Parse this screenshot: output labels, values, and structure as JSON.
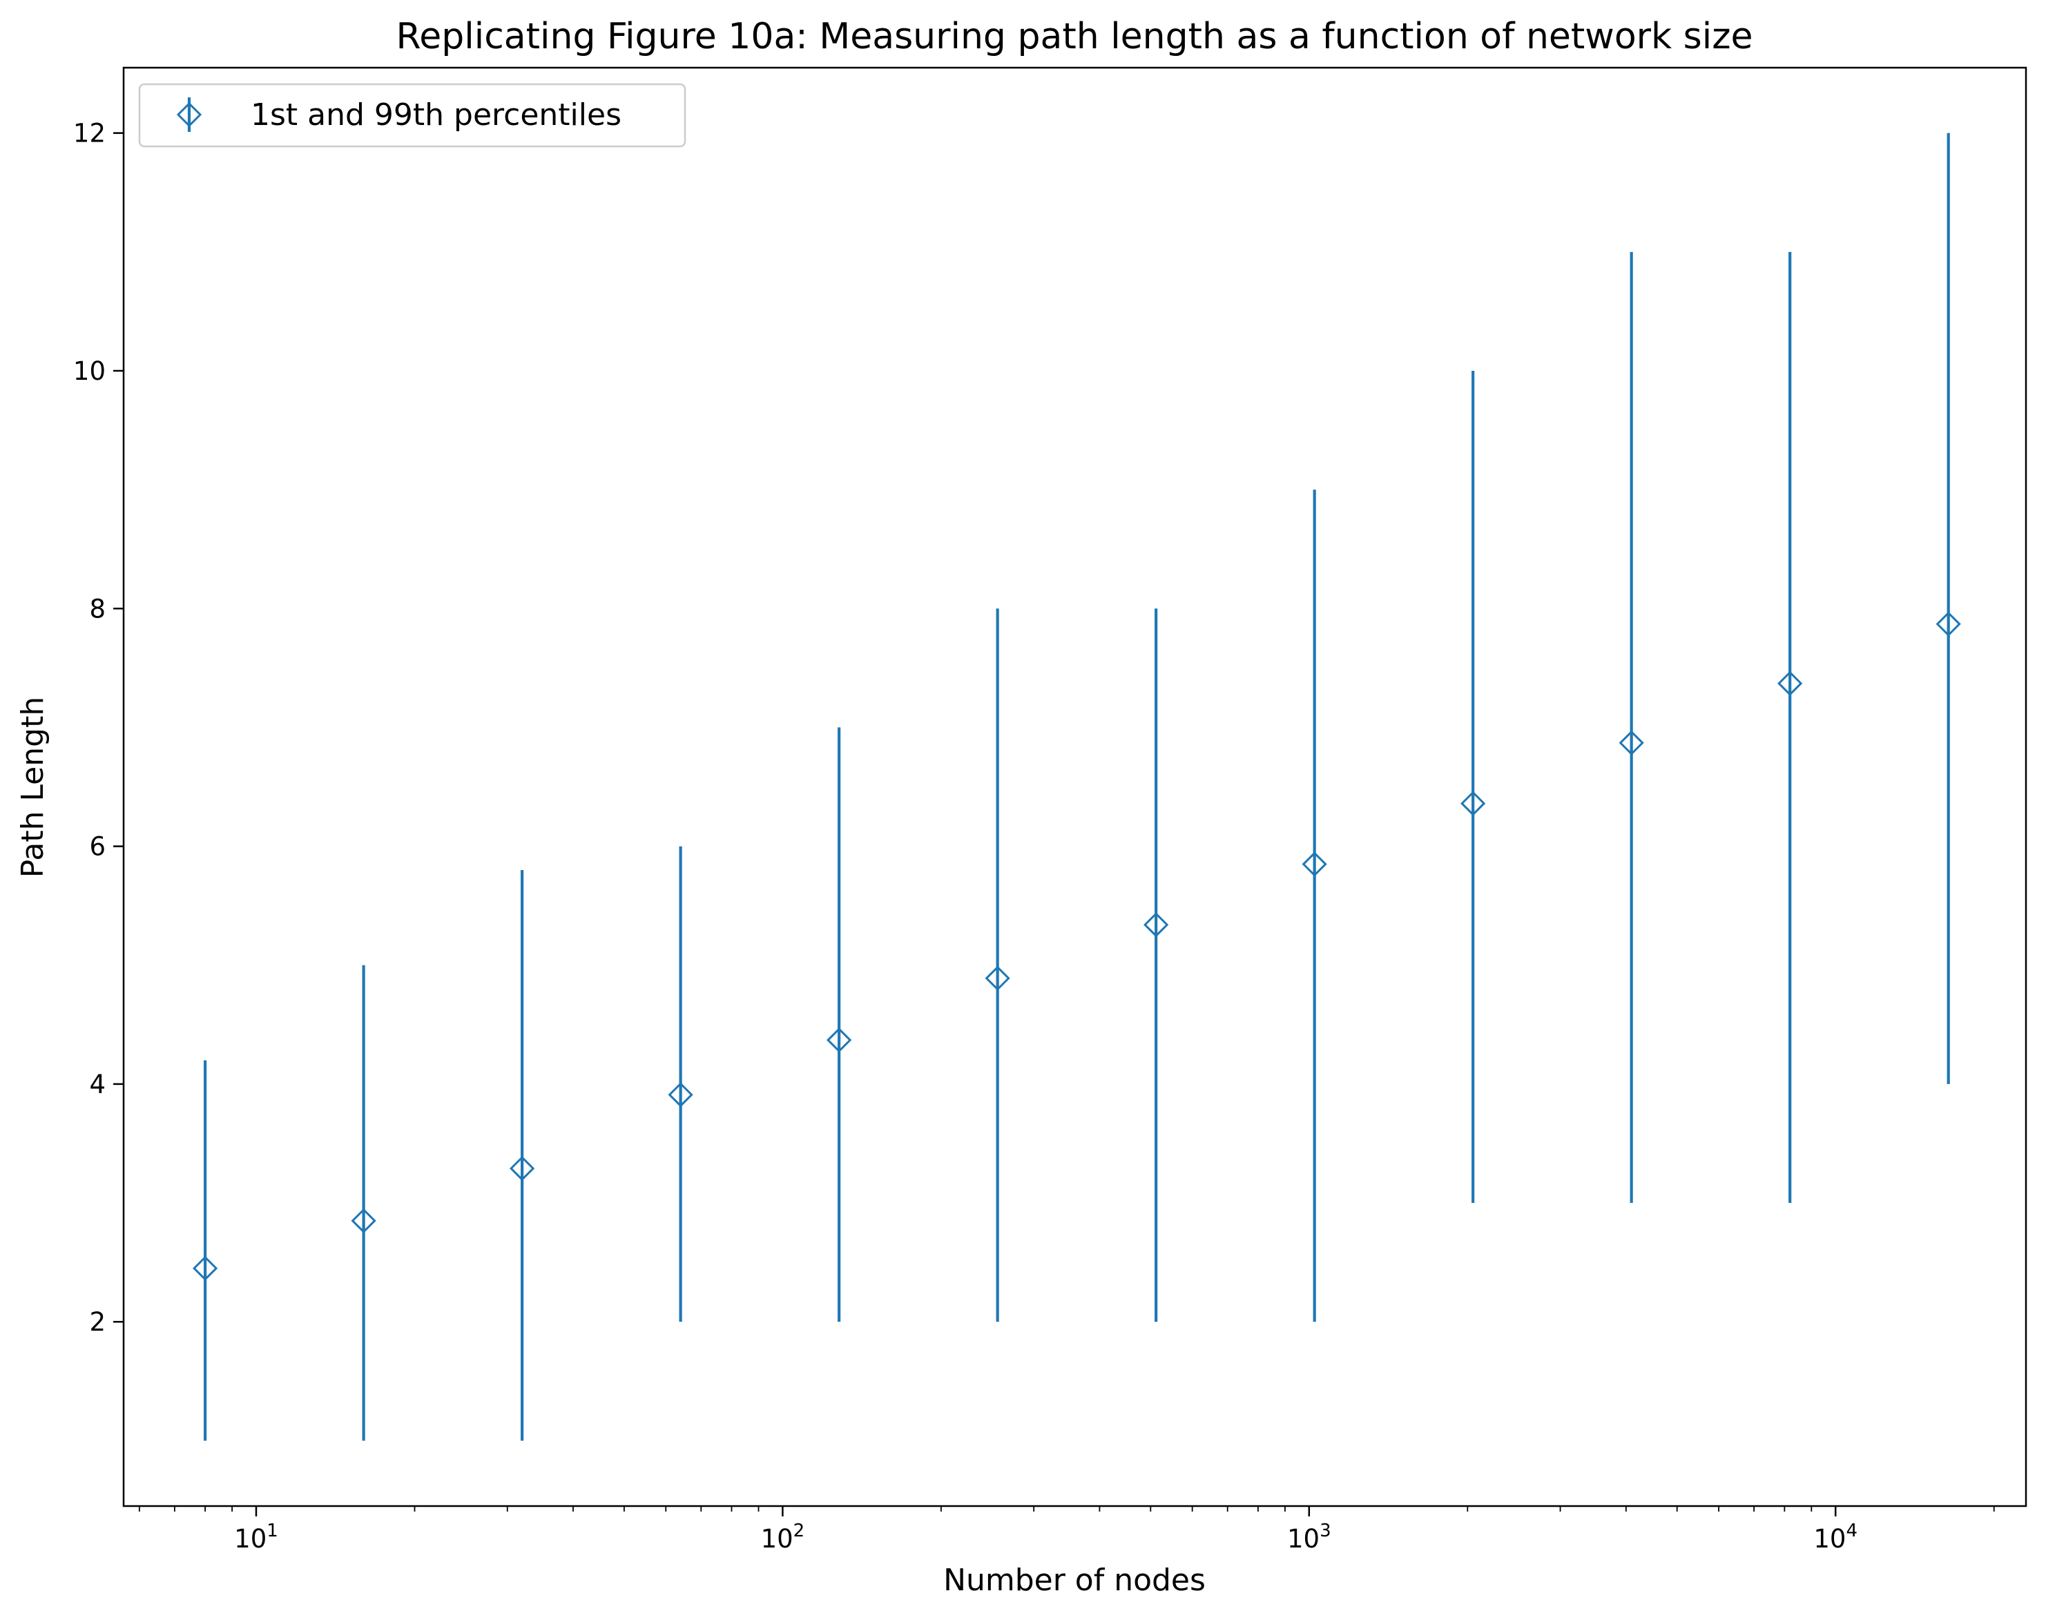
{
  "chart_data": {
    "type": "scatter",
    "title": "Replicating Figure 10a: Measuring path length as a function of network size",
    "xlabel": "Number of nodes",
    "ylabel": "Path Length",
    "xscale": "log",
    "xlim": [
      5.6,
      23000
    ],
    "ylim": [
      0.45,
      12.55
    ],
    "grid": false,
    "legend_position": "top-left",
    "x_ticks": [
      {
        "value": 10,
        "base": "10",
        "exp": "1"
      },
      {
        "value": 100,
        "base": "10",
        "exp": "2"
      },
      {
        "value": 1000,
        "base": "10",
        "exp": "3"
      },
      {
        "value": 10000,
        "base": "10",
        "exp": "4"
      }
    ],
    "y_ticks": [
      {
        "value": 2,
        "label": "2"
      },
      {
        "value": 4,
        "label": "4"
      },
      {
        "value": 6,
        "label": "6"
      },
      {
        "value": 8,
        "label": "8"
      },
      {
        "value": 10,
        "label": "10"
      },
      {
        "value": 12,
        "label": "12"
      }
    ],
    "series": [
      {
        "name": "1st and 99th percentiles",
        "color": "#1f77b4",
        "marker": "diamond-open",
        "x": [
          8,
          16,
          32,
          64,
          128,
          256,
          512,
          1024,
          2048,
          4096,
          8192,
          16384
        ],
        "y": [
          2.45,
          2.85,
          3.29,
          3.91,
          4.37,
          4.89,
          5.34,
          5.85,
          6.36,
          6.87,
          7.37,
          7.87
        ],
        "y_low": [
          1,
          1,
          1,
          2,
          2,
          2,
          2,
          2,
          3,
          3,
          3,
          4
        ],
        "y_high": [
          4.2,
          5,
          5.8,
          6,
          7,
          8,
          8,
          9,
          10,
          11,
          11,
          12
        ]
      }
    ]
  }
}
